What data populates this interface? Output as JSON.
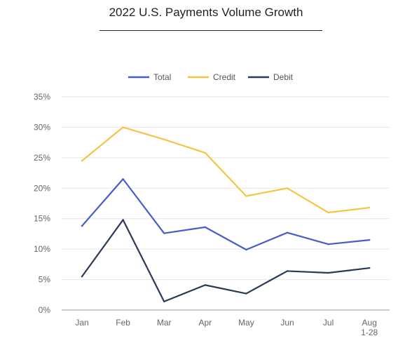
{
  "chart_data": {
    "type": "line",
    "title": "2022 U.S. Payments Volume Growth",
    "xlabel": "",
    "ylabel": "",
    "categories": [
      "Jan",
      "Feb",
      "Mar",
      "Apr",
      "May",
      "Jun",
      "Jul",
      "Aug\n1-28"
    ],
    "ylim": [
      0,
      35
    ],
    "yticks": [
      "0%",
      "5%",
      "10%",
      "15%",
      "20%",
      "25%",
      "30%",
      "35%"
    ],
    "ytick_values": [
      0,
      5,
      10,
      15,
      20,
      25,
      30,
      35
    ],
    "grid": true,
    "legend_position": "top-center",
    "series": [
      {
        "name": "Total",
        "color": "#4a5cc9",
        "values": [
          13.8,
          21.5,
          12.6,
          13.6,
          9.9,
          12.7,
          10.8,
          11.5
        ]
      },
      {
        "name": "Credit",
        "color": "#f5c542",
        "values": [
          24.5,
          30.0,
          28.0,
          25.8,
          18.7,
          20.0,
          16.0,
          16.8
        ]
      },
      {
        "name": "Debit",
        "color": "#2b3a55",
        "values": [
          5.5,
          14.8,
          1.4,
          4.1,
          2.7,
          6.4,
          6.1,
          6.9
        ]
      }
    ]
  }
}
